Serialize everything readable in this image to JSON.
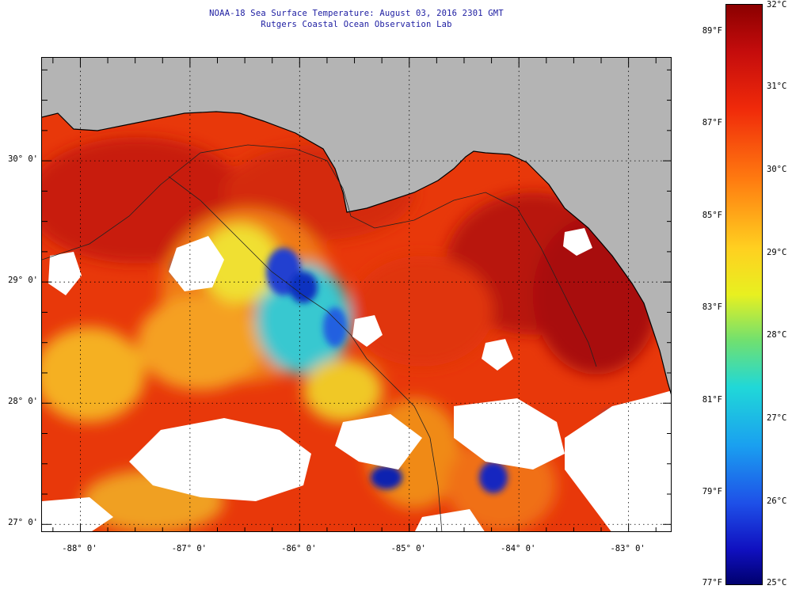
{
  "title": {
    "line1": "NOAA-18 Sea Surface Temperature:  August 03, 2016 2301 GMT",
    "line2": "Rutgers Coastal Ocean Observation Lab"
  },
  "map": {
    "lon_range": [
      -88.35,
      -82.6
    ],
    "lat_range": [
      26.93,
      30.85
    ],
    "lat_ticks": [
      {
        "value": 30,
        "label": "30° 0'"
      },
      {
        "value": 29,
        "label": "29° 0'"
      },
      {
        "value": 28,
        "label": "28° 0'"
      },
      {
        "value": 27,
        "label": "27° 0'"
      }
    ],
    "lon_ticks": [
      {
        "value": -88,
        "label": "-88° 0'"
      },
      {
        "value": -87,
        "label": "-87° 0'"
      },
      {
        "value": -86,
        "label": "-86° 0'"
      },
      {
        "value": -85,
        "label": "-85° 0'"
      },
      {
        "value": -84,
        "label": "-84° 0'"
      },
      {
        "value": -83,
        "label": "-83° 0'"
      }
    ],
    "colors": {
      "land": "#b4b4b4",
      "cloud": "#ffffff",
      "coast": "#000000"
    }
  },
  "colorbar": {
    "celsius_range": [
      25,
      32
    ],
    "celsius_labels": [
      "32°C",
      "31°C",
      "30°C",
      "29°C",
      "28°C",
      "27°C",
      "26°C",
      "25°C"
    ],
    "fahrenheit_labels": [
      "89°F",
      "87°F",
      "85°F",
      "83°F",
      "81°F",
      "79°F",
      "77°F"
    ],
    "fahrenheit_values": [
      89,
      87,
      85,
      83,
      81,
      79,
      77
    ]
  }
}
